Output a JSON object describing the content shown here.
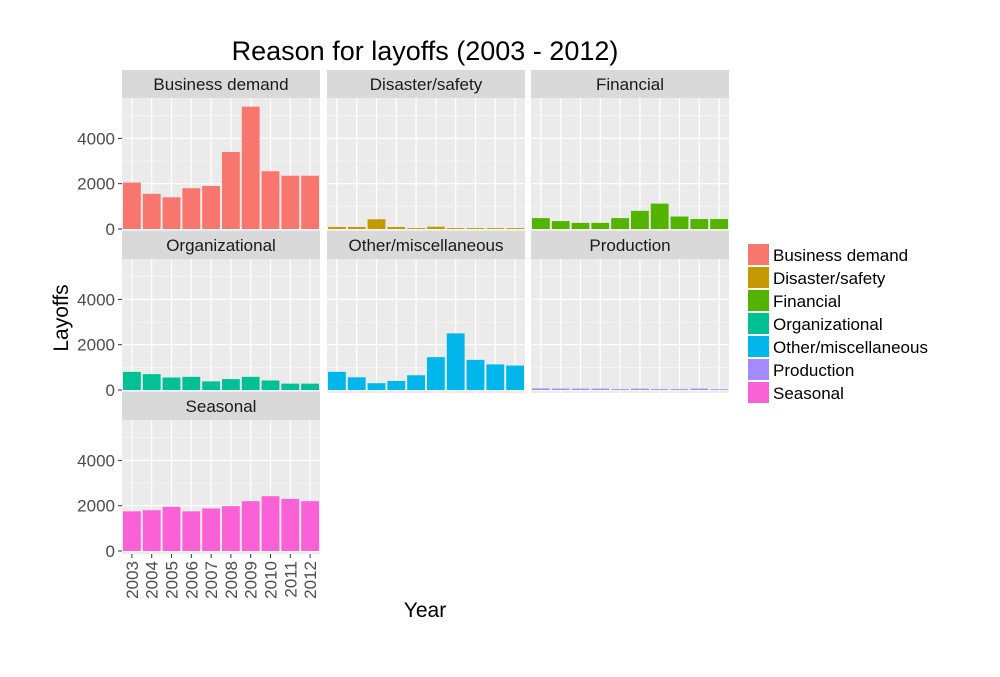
{
  "chart_data": {
    "type": "bar",
    "title": "Reason for layoffs (2003 - 2012)",
    "xlabel": "Year",
    "ylabel": "Layoffs",
    "categories": [
      "2003",
      "2004",
      "2005",
      "2006",
      "2007",
      "2008",
      "2009",
      "2010",
      "2011",
      "2012"
    ],
    "y_ticks": [
      0,
      2000,
      4000
    ],
    "ylim": [
      0,
      5650
    ],
    "facet_layout": "3 columns, free x labels on bottom row",
    "legend_position": "right",
    "grid": true,
    "series": [
      {
        "name": "Business demand",
        "color": "#F8766D",
        "values": [
          2050,
          1550,
          1400,
          1800,
          1900,
          3400,
          5400,
          2550,
          2350,
          2350
        ]
      },
      {
        "name": "Disaster/safety",
        "color": "#C49A00",
        "values": [
          90,
          90,
          430,
          90,
          40,
          100,
          40,
          40,
          40,
          40
        ]
      },
      {
        "name": "Financial",
        "color": "#53B400",
        "values": [
          480,
          350,
          270,
          270,
          480,
          800,
          1120,
          550,
          440,
          440
        ]
      },
      {
        "name": "Organizational",
        "color": "#00C094",
        "values": [
          800,
          700,
          550,
          580,
          380,
          480,
          580,
          420,
          280,
          280
        ]
      },
      {
        "name": "Other/miscellaneous",
        "color": "#00B6EB",
        "values": [
          800,
          560,
          300,
          400,
          650,
          1450,
          2500,
          1330,
          1130,
          1080
        ]
      },
      {
        "name": "Production",
        "color": "#A58AFF",
        "values": [
          70,
          60,
          60,
          60,
          40,
          60,
          40,
          40,
          60,
          30
        ]
      },
      {
        "name": "Seasonal",
        "color": "#FB61D7",
        "values": [
          1750,
          1800,
          1950,
          1750,
          1880,
          1980,
          2200,
          2420,
          2300,
          2200
        ]
      }
    ]
  }
}
